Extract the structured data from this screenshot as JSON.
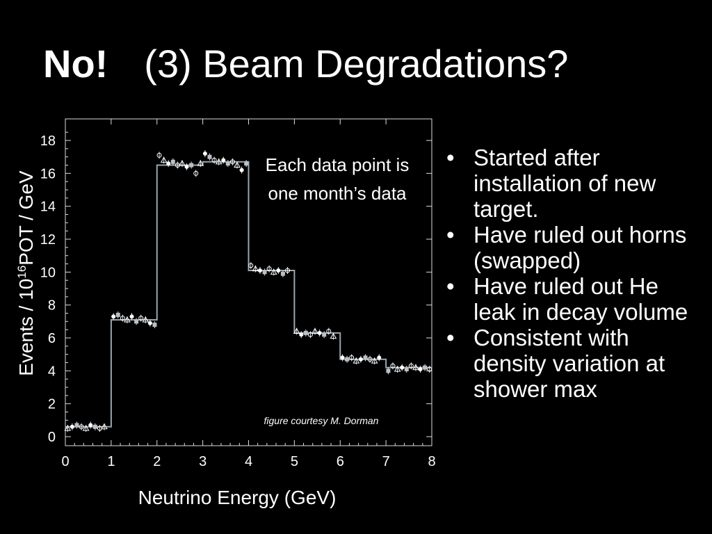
{
  "slide": {
    "title_bold": "No!",
    "title_rest": "(3) Beam Degradations?",
    "bullet_char": "•",
    "bullets": [
      "Started after installation of new target.",
      "Have ruled out horns (swapped)",
      "Have ruled out He leak in decay volume",
      "Consistent with density variation at shower max"
    ]
  },
  "chart_data": {
    "type": "line",
    "xlabel": "Neutrino Energy (GeV)",
    "ylabel_prefix": "Events / 10",
    "ylabel_sup": "16",
    "ylabel_suffix": "POT / GeV",
    "xlim": [
      0,
      8
    ],
    "ylim": [
      0,
      19
    ],
    "x_ticks": [
      "0",
      "1",
      "2",
      "3",
      "4",
      "5",
      "6",
      "7",
      "8"
    ],
    "y_ticks": [
      "0",
      "2",
      "4",
      "6",
      "8",
      "10",
      "12",
      "14",
      "16",
      "18"
    ],
    "annotation": "Each data point is one month’s data",
    "credit": "figure courtesy M. Dorman",
    "series": [
      {
        "style": "histogram",
        "bin_edges": [
          0,
          1,
          2,
          3,
          4,
          5,
          6,
          7,
          8
        ],
        "values": [
          0.6,
          7.1,
          16.5,
          16.7,
          10.1,
          6.3,
          4.7,
          4.2
        ]
      },
      {
        "style": "points",
        "points": [
          [
            0.05,
            0.5
          ],
          [
            0.15,
            0.6
          ],
          [
            0.25,
            0.7
          ],
          [
            0.35,
            0.6
          ],
          [
            0.45,
            0.5
          ],
          [
            0.55,
            0.7
          ],
          [
            0.65,
            0.6
          ],
          [
            0.75,
            0.5
          ],
          [
            0.85,
            0.6
          ],
          [
            1.05,
            7.3
          ],
          [
            1.15,
            7.4
          ],
          [
            1.25,
            7.2
          ],
          [
            1.35,
            7.1
          ],
          [
            1.45,
            7.3
          ],
          [
            1.55,
            7.0
          ],
          [
            1.65,
            7.2
          ],
          [
            1.75,
            7.1
          ],
          [
            1.85,
            6.9
          ],
          [
            1.95,
            6.8
          ],
          [
            2.05,
            17.1
          ],
          [
            2.15,
            16.8
          ],
          [
            2.25,
            16.6
          ],
          [
            2.35,
            16.7
          ],
          [
            2.45,
            16.5
          ],
          [
            2.55,
            16.6
          ],
          [
            2.65,
            16.4
          ],
          [
            2.75,
            16.5
          ],
          [
            2.85,
            16.0
          ],
          [
            2.95,
            16.6
          ],
          [
            3.05,
            17.2
          ],
          [
            3.15,
            17.0
          ],
          [
            3.25,
            16.8
          ],
          [
            3.35,
            16.7
          ],
          [
            3.45,
            16.8
          ],
          [
            3.55,
            16.6
          ],
          [
            3.65,
            16.7
          ],
          [
            3.75,
            16.5
          ],
          [
            3.85,
            16.2
          ],
          [
            3.95,
            16.6
          ],
          [
            4.05,
            10.4
          ],
          [
            4.15,
            10.2
          ],
          [
            4.25,
            10.1
          ],
          [
            4.35,
            10.0
          ],
          [
            4.45,
            10.2
          ],
          [
            4.55,
            10.0
          ],
          [
            4.65,
            10.1
          ],
          [
            4.75,
            9.9
          ],
          [
            4.85,
            10.1
          ],
          [
            5.05,
            6.4
          ],
          [
            5.15,
            6.2
          ],
          [
            5.25,
            6.3
          ],
          [
            5.35,
            6.2
          ],
          [
            5.45,
            6.4
          ],
          [
            5.55,
            6.3
          ],
          [
            5.65,
            6.2
          ],
          [
            5.75,
            6.4
          ],
          [
            5.85,
            6.1
          ],
          [
            6.05,
            4.8
          ],
          [
            6.15,
            4.7
          ],
          [
            6.25,
            4.8
          ],
          [
            6.35,
            4.6
          ],
          [
            6.45,
            4.7
          ],
          [
            6.55,
            4.8
          ],
          [
            6.65,
            4.7
          ],
          [
            6.75,
            4.6
          ],
          [
            6.85,
            4.8
          ],
          [
            7.05,
            4.0
          ],
          [
            7.15,
            4.3
          ],
          [
            7.25,
            4.1
          ],
          [
            7.35,
            4.2
          ],
          [
            7.45,
            4.1
          ],
          [
            7.55,
            4.3
          ],
          [
            7.65,
            4.2
          ],
          [
            7.75,
            4.1
          ],
          [
            7.85,
            4.2
          ],
          [
            7.95,
            4.1
          ]
        ]
      }
    ]
  }
}
